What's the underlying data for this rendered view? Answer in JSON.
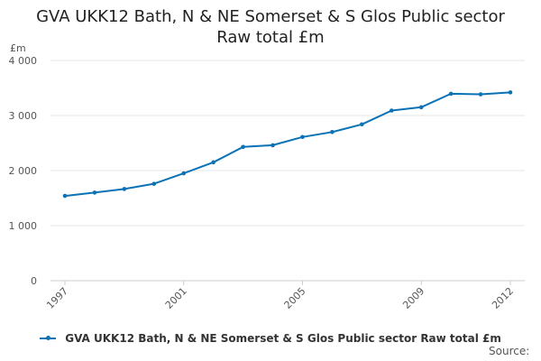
{
  "chart_data": {
    "type": "line",
    "title_lines": [
      "GVA UKK12 Bath, N & NE Somerset & S Glos Public sector",
      "Raw total £m"
    ],
    "unit_label": "£m",
    "ylim": [
      0,
      4000
    ],
    "y_ticks": [
      0,
      1000,
      2000,
      3000,
      4000
    ],
    "y_tick_labels": [
      "0",
      "1 000",
      "2 000",
      "3 000",
      "4 000"
    ],
    "x_range": [
      1997,
      2012
    ],
    "x_tick_labels": [
      "1997",
      "2001",
      "2005",
      "2009",
      "2012"
    ],
    "x_ticks": [
      1997,
      2001,
      2005,
      2009,
      2012
    ],
    "grid": true,
    "legend_position": "bottom",
    "series": [
      {
        "name": "GVA UKK12 Bath, N & NE Somerset & S Glos Public sector Raw total £m",
        "color": "#0b72b5",
        "x": [
          1997,
          1998,
          1999,
          2000,
          2001,
          2002,
          2003,
          2004,
          2005,
          2006,
          2007,
          2008,
          2009,
          2010,
          2011,
          2012
        ],
        "values": [
          1540,
          1600,
          1665,
          1760,
          1950,
          2150,
          2430,
          2460,
          2610,
          2700,
          2840,
          3090,
          3150,
          3395,
          3385,
          3420
        ]
      }
    ],
    "source": "Source:"
  }
}
